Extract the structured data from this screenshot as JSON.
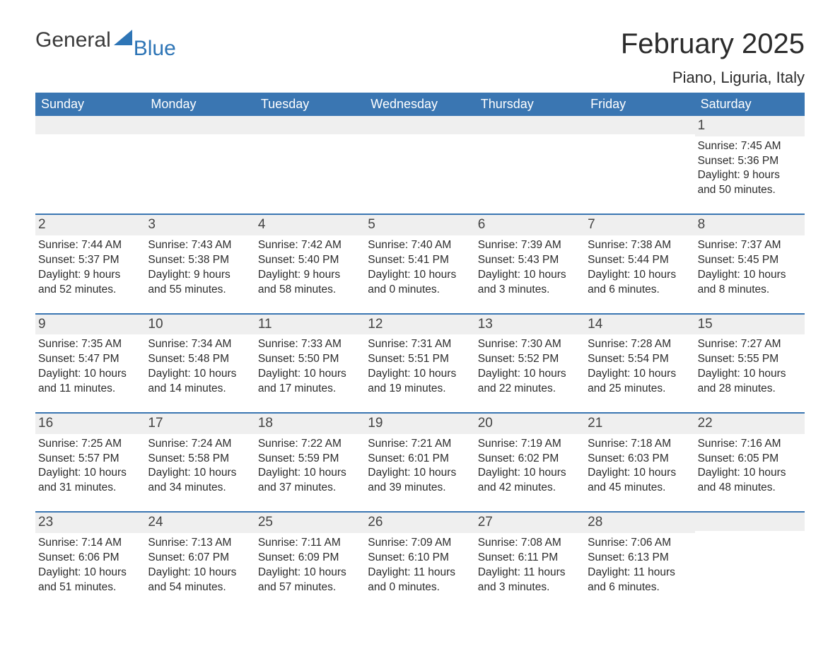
{
  "brand": {
    "general": "General",
    "blue": "Blue"
  },
  "header": {
    "month_title": "February 2025",
    "location": "Piano, Liguria, Italy"
  },
  "colors": {
    "header_bg": "#3a76b2",
    "header_text": "#ffffff",
    "band_bg": "#efefef",
    "rule": "#3a76b2",
    "brand_blue": "#2e75b6",
    "text": "#2b2b2b"
  },
  "day_names": [
    "Sunday",
    "Monday",
    "Tuesday",
    "Wednesday",
    "Thursday",
    "Friday",
    "Saturday"
  ],
  "weeks": [
    [
      {
        "day": null
      },
      {
        "day": null
      },
      {
        "day": null
      },
      {
        "day": null
      },
      {
        "day": null
      },
      {
        "day": null
      },
      {
        "day": "1",
        "sunrise": "Sunrise: 7:45 AM",
        "sunset": "Sunset: 5:36 PM",
        "daylight1": "Daylight: 9 hours",
        "daylight2": "and 50 minutes."
      }
    ],
    [
      {
        "day": "2",
        "sunrise": "Sunrise: 7:44 AM",
        "sunset": "Sunset: 5:37 PM",
        "daylight1": "Daylight: 9 hours",
        "daylight2": "and 52 minutes."
      },
      {
        "day": "3",
        "sunrise": "Sunrise: 7:43 AM",
        "sunset": "Sunset: 5:38 PM",
        "daylight1": "Daylight: 9 hours",
        "daylight2": "and 55 minutes."
      },
      {
        "day": "4",
        "sunrise": "Sunrise: 7:42 AM",
        "sunset": "Sunset: 5:40 PM",
        "daylight1": "Daylight: 9 hours",
        "daylight2": "and 58 minutes."
      },
      {
        "day": "5",
        "sunrise": "Sunrise: 7:40 AM",
        "sunset": "Sunset: 5:41 PM",
        "daylight1": "Daylight: 10 hours",
        "daylight2": "and 0 minutes."
      },
      {
        "day": "6",
        "sunrise": "Sunrise: 7:39 AM",
        "sunset": "Sunset: 5:43 PM",
        "daylight1": "Daylight: 10 hours",
        "daylight2": "and 3 minutes."
      },
      {
        "day": "7",
        "sunrise": "Sunrise: 7:38 AM",
        "sunset": "Sunset: 5:44 PM",
        "daylight1": "Daylight: 10 hours",
        "daylight2": "and 6 minutes."
      },
      {
        "day": "8",
        "sunrise": "Sunrise: 7:37 AM",
        "sunset": "Sunset: 5:45 PM",
        "daylight1": "Daylight: 10 hours",
        "daylight2": "and 8 minutes."
      }
    ],
    [
      {
        "day": "9",
        "sunrise": "Sunrise: 7:35 AM",
        "sunset": "Sunset: 5:47 PM",
        "daylight1": "Daylight: 10 hours",
        "daylight2": "and 11 minutes."
      },
      {
        "day": "10",
        "sunrise": "Sunrise: 7:34 AM",
        "sunset": "Sunset: 5:48 PM",
        "daylight1": "Daylight: 10 hours",
        "daylight2": "and 14 minutes."
      },
      {
        "day": "11",
        "sunrise": "Sunrise: 7:33 AM",
        "sunset": "Sunset: 5:50 PM",
        "daylight1": "Daylight: 10 hours",
        "daylight2": "and 17 minutes."
      },
      {
        "day": "12",
        "sunrise": "Sunrise: 7:31 AM",
        "sunset": "Sunset: 5:51 PM",
        "daylight1": "Daylight: 10 hours",
        "daylight2": "and 19 minutes."
      },
      {
        "day": "13",
        "sunrise": "Sunrise: 7:30 AM",
        "sunset": "Sunset: 5:52 PM",
        "daylight1": "Daylight: 10 hours",
        "daylight2": "and 22 minutes."
      },
      {
        "day": "14",
        "sunrise": "Sunrise: 7:28 AM",
        "sunset": "Sunset: 5:54 PM",
        "daylight1": "Daylight: 10 hours",
        "daylight2": "and 25 minutes."
      },
      {
        "day": "15",
        "sunrise": "Sunrise: 7:27 AM",
        "sunset": "Sunset: 5:55 PM",
        "daylight1": "Daylight: 10 hours",
        "daylight2": "and 28 minutes."
      }
    ],
    [
      {
        "day": "16",
        "sunrise": "Sunrise: 7:25 AM",
        "sunset": "Sunset: 5:57 PM",
        "daylight1": "Daylight: 10 hours",
        "daylight2": "and 31 minutes."
      },
      {
        "day": "17",
        "sunrise": "Sunrise: 7:24 AM",
        "sunset": "Sunset: 5:58 PM",
        "daylight1": "Daylight: 10 hours",
        "daylight2": "and 34 minutes."
      },
      {
        "day": "18",
        "sunrise": "Sunrise: 7:22 AM",
        "sunset": "Sunset: 5:59 PM",
        "daylight1": "Daylight: 10 hours",
        "daylight2": "and 37 minutes."
      },
      {
        "day": "19",
        "sunrise": "Sunrise: 7:21 AM",
        "sunset": "Sunset: 6:01 PM",
        "daylight1": "Daylight: 10 hours",
        "daylight2": "and 39 minutes."
      },
      {
        "day": "20",
        "sunrise": "Sunrise: 7:19 AM",
        "sunset": "Sunset: 6:02 PM",
        "daylight1": "Daylight: 10 hours",
        "daylight2": "and 42 minutes."
      },
      {
        "day": "21",
        "sunrise": "Sunrise: 7:18 AM",
        "sunset": "Sunset: 6:03 PM",
        "daylight1": "Daylight: 10 hours",
        "daylight2": "and 45 minutes."
      },
      {
        "day": "22",
        "sunrise": "Sunrise: 7:16 AM",
        "sunset": "Sunset: 6:05 PM",
        "daylight1": "Daylight: 10 hours",
        "daylight2": "and 48 minutes."
      }
    ],
    [
      {
        "day": "23",
        "sunrise": "Sunrise: 7:14 AM",
        "sunset": "Sunset: 6:06 PM",
        "daylight1": "Daylight: 10 hours",
        "daylight2": "and 51 minutes."
      },
      {
        "day": "24",
        "sunrise": "Sunrise: 7:13 AM",
        "sunset": "Sunset: 6:07 PM",
        "daylight1": "Daylight: 10 hours",
        "daylight2": "and 54 minutes."
      },
      {
        "day": "25",
        "sunrise": "Sunrise: 7:11 AM",
        "sunset": "Sunset: 6:09 PM",
        "daylight1": "Daylight: 10 hours",
        "daylight2": "and 57 minutes."
      },
      {
        "day": "26",
        "sunrise": "Sunrise: 7:09 AM",
        "sunset": "Sunset: 6:10 PM",
        "daylight1": "Daylight: 11 hours",
        "daylight2": "and 0 minutes."
      },
      {
        "day": "27",
        "sunrise": "Sunrise: 7:08 AM",
        "sunset": "Sunset: 6:11 PM",
        "daylight1": "Daylight: 11 hours",
        "daylight2": "and 3 minutes."
      },
      {
        "day": "28",
        "sunrise": "Sunrise: 7:06 AM",
        "sunset": "Sunset: 6:13 PM",
        "daylight1": "Daylight: 11 hours",
        "daylight2": "and 6 minutes."
      },
      {
        "day": null
      }
    ]
  ]
}
